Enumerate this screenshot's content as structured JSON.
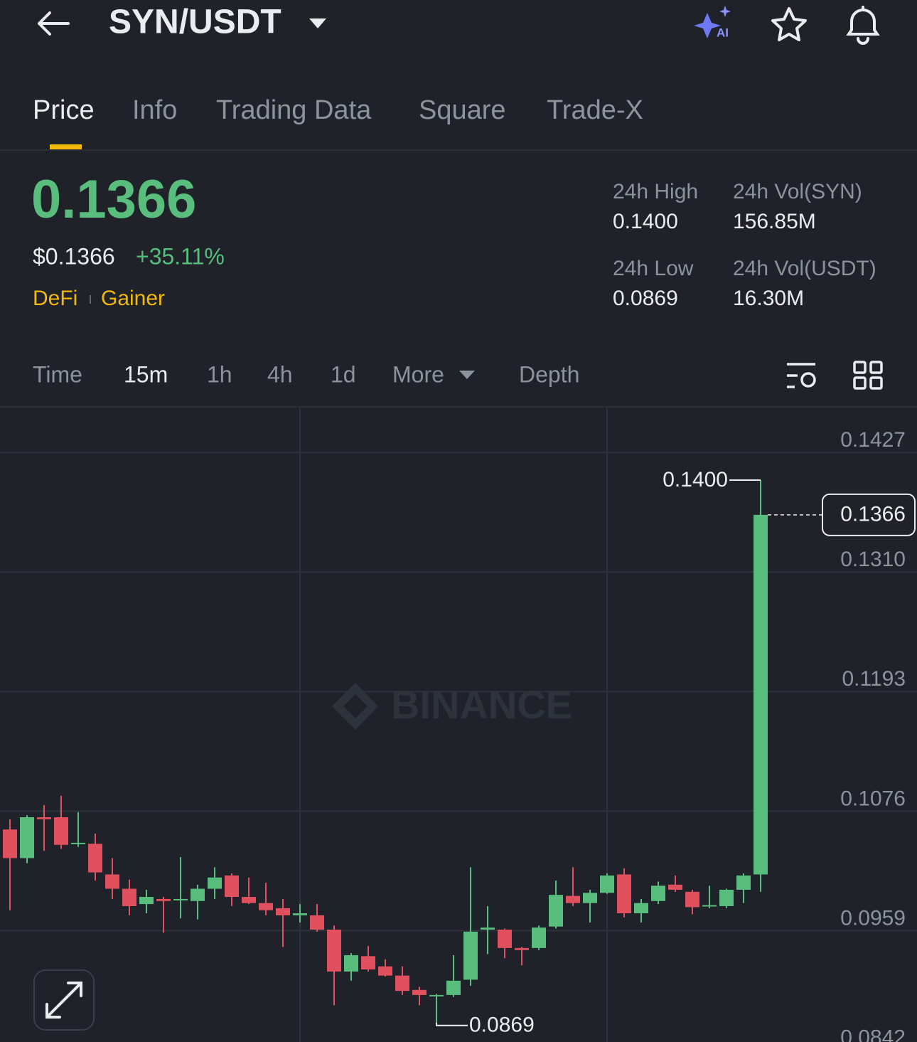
{
  "header": {
    "title": "SYN/USDT",
    "tabs": [
      "Price",
      "Info",
      "Trading Data",
      "Square",
      "Trade-X"
    ]
  },
  "price": {
    "last": "0.1366",
    "usd": "$0.1366",
    "change": "+35.11%",
    "tags": [
      "DeFi",
      "Gainer"
    ]
  },
  "stats": [
    {
      "label": "24h High",
      "value": "0.1400"
    },
    {
      "label": "24h Vol(SYN)",
      "value": "156.85M"
    },
    {
      "label": "24h Low",
      "value": "0.0869"
    },
    {
      "label": "24h Vol(USDT)",
      "value": "16.30M"
    }
  ],
  "timeframes": [
    "Time",
    "15m",
    "1h",
    "4h",
    "1d",
    "More",
    "Depth"
  ],
  "chart_data": {
    "type": "candlestick",
    "watermark": "BINANCE",
    "up_color": "#58bd7d",
    "down_color": "#e0505e",
    "grid": true,
    "ylim": [
      0.085,
      0.1471
    ],
    "yticks": [
      0.1427,
      {
        "value": 0.131,
        "label": "0.1310"
      },
      0.1193,
      0.1076,
      0.0959,
      0.0842
    ],
    "open": [
      0.1058,
      0.103,
      0.107,
      0.107,
      0.1044,
      0.1044,
      0.1014,
      0.1,
      0.0985,
      0.099,
      0.0989,
      0.0988,
      0.1,
      0.1013,
      0.0992,
      0.0986,
      0.0981,
      0.0974,
      0.0974,
      0.096,
      0.0919,
      0.0934,
      0.0924,
      0.0915,
      0.0901,
      0.0895,
      0.0896,
      0.0911,
      0.096,
      0.096,
      0.0942,
      0.0942,
      0.0963,
      0.0993,
      0.0986,
      0.0996,
      0.1014,
      0.0976,
      0.0988,
      0.1004,
      0.0997,
      0.0983,
      0.0983,
      0.0999,
      0.1014
    ],
    "high": [
      0.1068,
      0.1072,
      0.1082,
      0.1091,
      0.1075,
      0.1054,
      0.103,
      0.1009,
      0.0999,
      0.0992,
      0.1031,
      0.1004,
      0.1021,
      0.1015,
      0.1011,
      0.1006,
      0.099,
      0.0985,
      0.0985,
      0.0964,
      0.0937,
      0.0944,
      0.0931,
      0.0924,
      0.0904,
      0.0897,
      0.0935,
      0.1021,
      0.0983,
      0.0961,
      0.0943,
      0.0964,
      0.1008,
      0.1021,
      0.0999,
      0.1015,
      0.102,
      0.099,
      0.1007,
      0.1013,
      0.0999,
      0.1003,
      0.1,
      0.1015,
      0.14
    ],
    "low": [
      0.0979,
      0.1025,
      0.1037,
      0.1039,
      0.1041,
      0.1008,
      0.099,
      0.0974,
      0.0976,
      0.0957,
      0.0971,
      0.097,
      0.099,
      0.0983,
      0.0985,
      0.0974,
      0.0943,
      0.0967,
      0.0958,
      0.0886,
      0.091,
      0.0919,
      0.0914,
      0.0896,
      0.0886,
      0.0869,
      0.0894,
      0.0905,
      0.0936,
      0.0932,
      0.0925,
      0.094,
      0.0961,
      0.0983,
      0.0967,
      0.0995,
      0.0972,
      0.0967,
      0.0985,
      0.0997,
      0.0975,
      0.0981,
      0.0981,
      0.0986,
      0.0997
    ],
    "close": [
      0.103,
      0.107,
      0.1068,
      0.1043,
      0.1045,
      0.1016,
      0.1,
      0.0983,
      0.0992,
      0.0988,
      0.099,
      0.1,
      0.1011,
      0.0992,
      0.0986,
      0.0979,
      0.0974,
      0.0976,
      0.096,
      0.0919,
      0.0935,
      0.0921,
      0.0915,
      0.09,
      0.0896,
      0.0896,
      0.091,
      0.0958,
      0.0962,
      0.0942,
      0.094,
      0.0962,
      0.0994,
      0.0986,
      0.0996,
      0.1013,
      0.0976,
      0.0986,
      0.1003,
      0.0999,
      0.0982,
      0.0984,
      0.0999,
      0.1013,
      0.1366
    ],
    "max_marker": {
      "value": 0.14,
      "label": "0.1400"
    },
    "min_marker": {
      "value": 0.0869,
      "label": "0.0869"
    },
    "last_price": {
      "value": 0.1366,
      "label": "0.1366"
    }
  }
}
